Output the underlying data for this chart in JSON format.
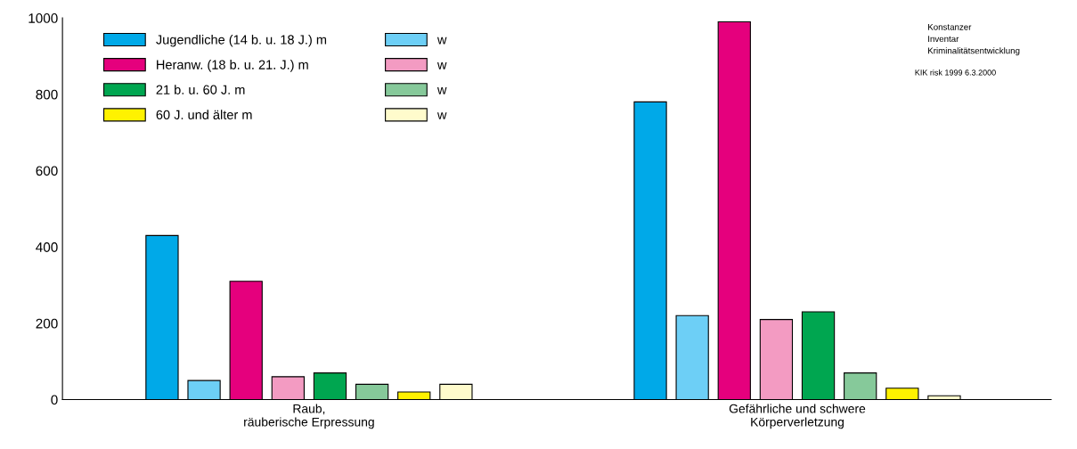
{
  "chart_data": {
    "type": "bar",
    "categories": [
      "Raub,\nräuberische Erpressung",
      "Gefährliche und schwere\nKörperverletzung"
    ],
    "series": [
      {
        "name": "Jugendliche (14 b. u. 18 J.) m",
        "color": "#00a9e8",
        "values": [
          430,
          780
        ]
      },
      {
        "name": "w",
        "color": "#6dcff6",
        "values": [
          50,
          220
        ]
      },
      {
        "name": "Heranw. (18 b. u. 21. J.) m",
        "color": "#e5007d",
        "values": [
          310,
          990
        ]
      },
      {
        "name": "w",
        "color": "#f39bc2",
        "values": [
          60,
          210
        ]
      },
      {
        "name": "21 b. u. 60 J. m",
        "color": "#00a650",
        "values": [
          70,
          230
        ]
      },
      {
        "name": "w",
        "color": "#86c99a",
        "values": [
          40,
          70
        ]
      },
      {
        "name": "60 J. und älter m",
        "color": "#fff200",
        "values": [
          20,
          30
        ]
      },
      {
        "name": "w",
        "color": "#fffbcc",
        "values": [
          40,
          10
        ]
      }
    ],
    "ylim": [
      0,
      1000
    ],
    "yticks": [
      0,
      200,
      400,
      600,
      800,
      1000
    ],
    "grid": false,
    "legend": "top left",
    "annotations": [
      "Konstanzer\nInventar\nKriminalitätsentwicklung",
      "KIK risk 1999 6.3.2000"
    ]
  }
}
